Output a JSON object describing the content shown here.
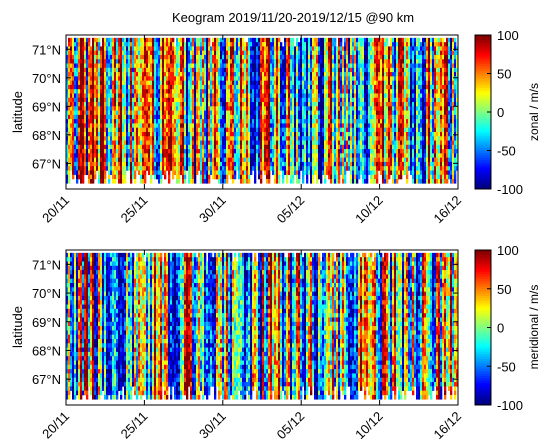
{
  "title": "Keogram 2019/11/20-2019/12/15 @90 km",
  "colormap": "jet",
  "chart_data": [
    {
      "type": "heatmap",
      "title": "Keogram 2019/11/20-2019/12/15 @90 km",
      "xlabel": "",
      "ylabel": "latitude",
      "x_ticks": [
        "20/11",
        "25/11",
        "30/11",
        "05/12",
        "10/12",
        "16/12"
      ],
      "y_ticks": [
        "67°N",
        "68°N",
        "69°N",
        "70°N",
        "71°N"
      ],
      "y_tick_values": [
        67,
        68,
        69,
        70,
        71
      ],
      "ylim": [
        66.1,
        71.5
      ],
      "data_lat_range": [
        66.3,
        71.4
      ],
      "colorbar": {
        "label": "zonal / m/s",
        "ticks": [
          "100",
          "50",
          "0",
          "-50",
          "-100"
        ],
        "range": [
          -100,
          100
        ]
      },
      "seed": 11
    },
    {
      "type": "heatmap",
      "title": "",
      "xlabel": "",
      "ylabel": "latitude",
      "x_ticks": [
        "20/11",
        "25/11",
        "30/11",
        "05/12",
        "10/12",
        "16/12"
      ],
      "y_ticks": [
        "67°N",
        "68°N",
        "69°N",
        "70°N",
        "71°N"
      ],
      "y_tick_values": [
        67,
        68,
        69,
        70,
        71
      ],
      "ylim": [
        66.1,
        71.5
      ],
      "data_lat_range": [
        66.3,
        71.4
      ],
      "colorbar": {
        "label": "meridional / m/s",
        "ticks": [
          "100",
          "50",
          "0",
          "-50",
          "-100"
        ],
        "range": [
          -100,
          100
        ]
      },
      "seed": 29
    }
  ]
}
